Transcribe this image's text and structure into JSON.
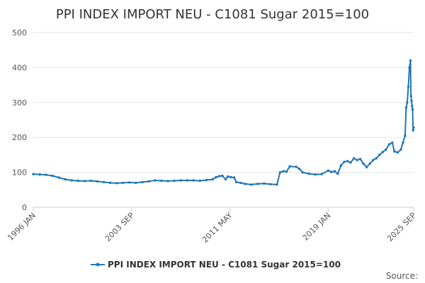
{
  "chart_data": {
    "type": "line",
    "title": "PPI INDEX IMPORT NEU - C1081 Sugar 2015=100",
    "source_label": "Source:",
    "color": "#1f77b4",
    "ylim": [
      0,
      500
    ],
    "yticks": [
      0,
      100,
      200,
      300,
      400,
      500
    ],
    "xlim": [
      "1996-01",
      "2025-09"
    ],
    "xticks": [
      {
        "label": "1996 JAN",
        "date": "1996-01"
      },
      {
        "label": "2003 SEP",
        "date": "2003-09"
      },
      {
        "label": "2011 MAY",
        "date": "2011-05"
      },
      {
        "label": "2019 JAN",
        "date": "2019-01"
      },
      {
        "label": "2025 SEP",
        "date": "2025-09"
      }
    ],
    "grid": true,
    "legend_position": "bottom",
    "series": [
      {
        "name": "PPI INDEX IMPORT NEU - C1081 Sugar 2015=100",
        "points": [
          [
            "1996-01",
            95
          ],
          [
            "1996-07",
            94
          ],
          [
            "1997-01",
            93
          ],
          [
            "1997-07",
            90
          ],
          [
            "1998-01",
            85
          ],
          [
            "1998-07",
            80
          ],
          [
            "1999-01",
            77
          ],
          [
            "1999-07",
            76
          ],
          [
            "2000-01",
            75
          ],
          [
            "2000-07",
            76
          ],
          [
            "2001-01",
            74
          ],
          [
            "2001-07",
            72
          ],
          [
            "2002-01",
            70
          ],
          [
            "2002-07",
            69
          ],
          [
            "2003-01",
            70
          ],
          [
            "2003-07",
            71
          ],
          [
            "2004-01",
            70
          ],
          [
            "2004-07",
            72
          ],
          [
            "2005-01",
            74
          ],
          [
            "2005-07",
            77
          ],
          [
            "2006-01",
            76
          ],
          [
            "2006-07",
            75
          ],
          [
            "2007-01",
            76
          ],
          [
            "2007-07",
            77
          ],
          [
            "2008-01",
            77
          ],
          [
            "2008-07",
            77
          ],
          [
            "2009-01",
            76
          ],
          [
            "2009-07",
            78
          ],
          [
            "2010-01",
            80
          ],
          [
            "2010-04",
            86
          ],
          [
            "2010-07",
            89
          ],
          [
            "2010-10",
            90
          ],
          [
            "2011-01",
            80
          ],
          [
            "2011-03",
            88
          ],
          [
            "2011-06",
            86
          ],
          [
            "2011-09",
            85
          ],
          [
            "2011-11",
            72
          ],
          [
            "2012-03",
            70
          ],
          [
            "2012-07",
            67
          ],
          [
            "2013-01",
            65
          ],
          [
            "2013-07",
            67
          ],
          [
            "2014-01",
            68
          ],
          [
            "2014-07",
            66
          ],
          [
            "2015-01",
            65
          ],
          [
            "2015-04",
            100
          ],
          [
            "2015-07",
            103
          ],
          [
            "2015-10",
            102
          ],
          [
            "2016-01",
            117
          ],
          [
            "2016-07",
            116
          ],
          [
            "2016-10",
            110
          ],
          [
            "2017-01",
            100
          ],
          [
            "2017-07",
            96
          ],
          [
            "2018-01",
            94
          ],
          [
            "2018-07",
            95
          ],
          [
            "2019-01",
            105
          ],
          [
            "2019-04",
            101
          ],
          [
            "2019-07",
            103
          ],
          [
            "2019-10",
            96
          ],
          [
            "2020-01",
            120
          ],
          [
            "2020-04",
            130
          ],
          [
            "2020-07",
            132
          ],
          [
            "2020-10",
            128
          ],
          [
            "2021-01",
            140
          ],
          [
            "2021-04",
            135
          ],
          [
            "2021-07",
            138
          ],
          [
            "2021-10",
            125
          ],
          [
            "2022-01",
            115
          ],
          [
            "2022-04",
            125
          ],
          [
            "2022-07",
            135
          ],
          [
            "2022-10",
            140
          ],
          [
            "2023-01",
            150
          ],
          [
            "2023-04",
            158
          ],
          [
            "2023-07",
            165
          ],
          [
            "2023-10",
            180
          ],
          [
            "2024-01",
            185
          ],
          [
            "2024-03",
            160
          ],
          [
            "2024-06",
            157
          ],
          [
            "2024-09",
            165
          ],
          [
            "2024-11",
            185
          ],
          [
            "2025-01",
            205
          ],
          [
            "2025-02",
            285
          ],
          [
            "2025-03",
            300
          ],
          [
            "2025-04",
            345
          ],
          [
            "2025-05",
            400
          ],
          [
            "2025-06",
            420
          ],
          [
            "2025-06-15",
            318
          ],
          [
            "2025-07",
            305
          ],
          [
            "2025-07-15",
            290
          ],
          [
            "2025-08",
            280
          ],
          [
            "2025-08-15",
            220
          ],
          [
            "2025-09",
            228
          ]
        ]
      }
    ]
  }
}
